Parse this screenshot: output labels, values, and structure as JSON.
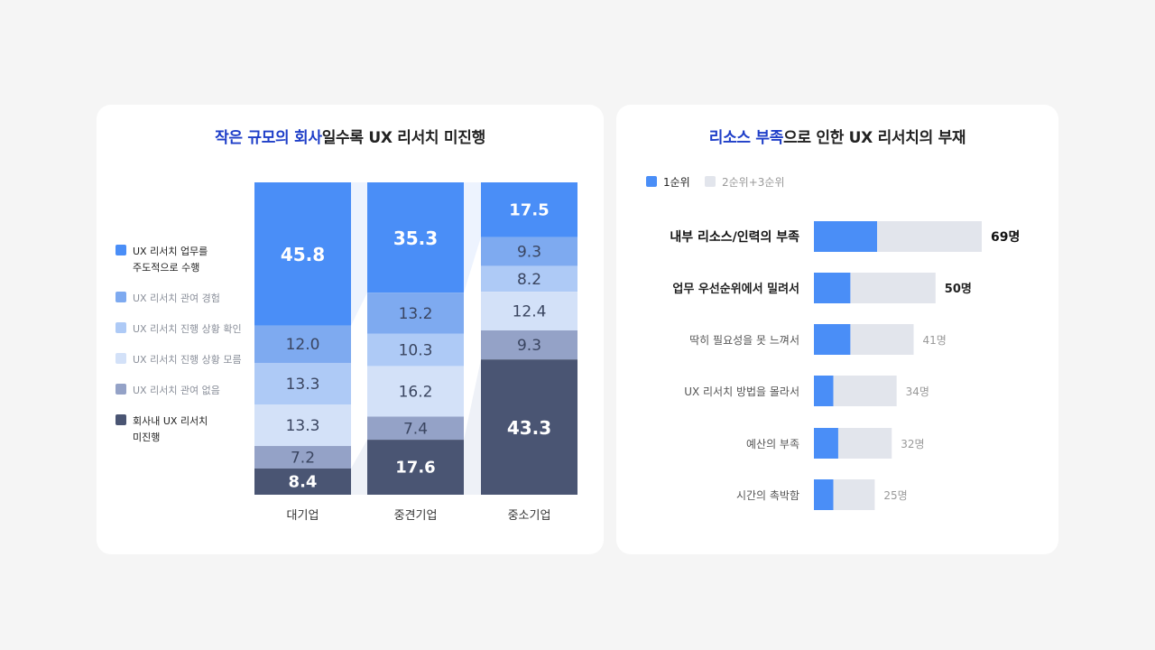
{
  "left": {
    "title_highlight": "작은 규모의 회사",
    "title_rest": "일수록 UX 리서치 미진행",
    "legend": [
      {
        "label": "UX 리서치 업무를",
        "label2": "주도적으로 수행",
        "color": "#4a8ef7",
        "strong": true
      },
      {
        "label": "UX 리서치 관여 경험",
        "label2": "",
        "color": "#7eaaf0",
        "strong": false
      },
      {
        "label": "UX 리서치 진행 상황 확인",
        "label2": "",
        "color": "#aecaf6",
        "strong": false
      },
      {
        "label": "UX 리서치 진행 상황 모름",
        "label2": "",
        "color": "#d3e1f8",
        "strong": false
      },
      {
        "label": "UX 리서치 관여 없음",
        "label2": "",
        "color": "#94a2c7",
        "strong": false
      },
      {
        "label": "회사내 UX 리서치",
        "label2": "미진행",
        "color": "#4a5573",
        "strong": true
      }
    ]
  },
  "right": {
    "title_highlight": "리소스 부족",
    "title_rest": "으로 인한 UX 리서치의 부재",
    "legend": [
      {
        "label": "1순위",
        "color": "#4a8ef7"
      },
      {
        "label": "2순위+3순위",
        "color": "#e2e5ec"
      }
    ]
  },
  "chart_data": [
    {
      "type": "bar",
      "stacked": true,
      "normalized": true,
      "categories": [
        "대기업",
        "중견기업",
        "중소기업"
      ],
      "series": [
        {
          "name": "UX 리서치 업무를 주도적으로 수행",
          "values": [
            45.8,
            35.3,
            17.5
          ],
          "color": "#4a8ef7"
        },
        {
          "name": "UX 리서치 관여 경험",
          "values": [
            12.0,
            13.2,
            9.3
          ],
          "color": "#7eaaf0"
        },
        {
          "name": "UX 리서치 진행 상황 확인",
          "values": [
            13.3,
            10.3,
            8.2
          ],
          "color": "#aecaf6"
        },
        {
          "name": "UX 리서치 진행 상황 모름",
          "values": [
            13.3,
            16.2,
            12.4
          ],
          "color": "#d3e1f8"
        },
        {
          "name": "UX 리서치 관여 없음",
          "values": [
            7.2,
            7.4,
            9.3
          ],
          "color": "#94a2c7"
        },
        {
          "name": "회사내 UX 리서치 미진행",
          "values": [
            8.4,
            17.6,
            43.3
          ],
          "color": "#4a5573"
        }
      ],
      "value_labels": [
        [
          "45.8",
          "12.0",
          "13.3",
          "13.3",
          "7.2",
          "8.4"
        ],
        [
          "35.3",
          "13.2",
          "10.3",
          "16.2",
          "7.4",
          "17.6"
        ],
        [
          "17.5",
          "9.3",
          "8.2",
          "12.4",
          "9.3",
          "43.3"
        ]
      ],
      "title": "작은 규모의 회사일수록 UX 리서치 미진행"
    },
    {
      "type": "bar",
      "orientation": "horizontal",
      "stacked": true,
      "categories": [
        "내부 리소스/인력의 부족",
        "업무 우선순위에서 밀려서",
        "딱히 필요성을 못 느껴서",
        "UX 리서치 방법을 몰라서",
        "예산의 부족",
        "시간의 촉박함"
      ],
      "series": [
        {
          "name": "1순위",
          "values": [
            26,
            15,
            15,
            8,
            10,
            8
          ],
          "color": "#4a8ef7"
        },
        {
          "name": "2순위+3순위",
          "values": [
            43,
            35,
            26,
            26,
            22,
            17
          ],
          "color": "#e2e5ec"
        }
      ],
      "totals": [
        69,
        50,
        41,
        34,
        32,
        25
      ],
      "total_labels": [
        "69명",
        "50명",
        "41명",
        "34명",
        "32명",
        "25명"
      ],
      "title": "리소스 부족으로 인한 UX 리서치의 부재"
    }
  ]
}
